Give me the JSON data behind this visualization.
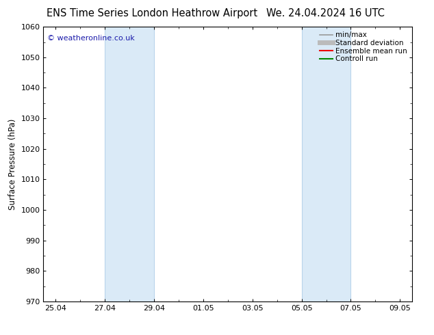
{
  "title_left": "ENS Time Series London Heathrow Airport",
  "title_right": "We. 24.04.2024 16 UTC",
  "ylabel": "Surface Pressure (hPa)",
  "ylim": [
    970,
    1060
  ],
  "yticks": [
    970,
    980,
    990,
    1000,
    1010,
    1020,
    1030,
    1040,
    1050,
    1060
  ],
  "xtick_labels": [
    "25.04",
    "27.04",
    "29.04",
    "01.05",
    "03.05",
    "05.05",
    "07.05",
    "09.05"
  ],
  "xtick_positions": [
    0,
    2,
    4,
    6,
    8,
    10,
    12,
    14
  ],
  "xlim": [
    -0.5,
    14.5
  ],
  "weekend_bands": [
    {
      "xmin": 2,
      "xmax": 4
    },
    {
      "xmin": 10,
      "xmax": 12
    }
  ],
  "band_color": "#daeaf7",
  "band_edge_color": "#b8d4eb",
  "background_color": "#ffffff",
  "copyright_text": "© weatheronline.co.uk",
  "copyright_color": "#1a1aaa",
  "legend_entries": [
    {
      "label": "min/max",
      "color": "#999999",
      "lw": 1.2
    },
    {
      "label": "Standard deviation",
      "color": "#bbbbbb",
      "lw": 5
    },
    {
      "label": "Ensemble mean run",
      "color": "#ee0000",
      "lw": 1.5
    },
    {
      "label": "Controll run",
      "color": "#008800",
      "lw": 1.5
    }
  ],
  "title_fontsize": 10.5,
  "ylabel_fontsize": 8.5,
  "tick_fontsize": 8,
  "legend_fontsize": 7.5,
  "copyright_fontsize": 8
}
